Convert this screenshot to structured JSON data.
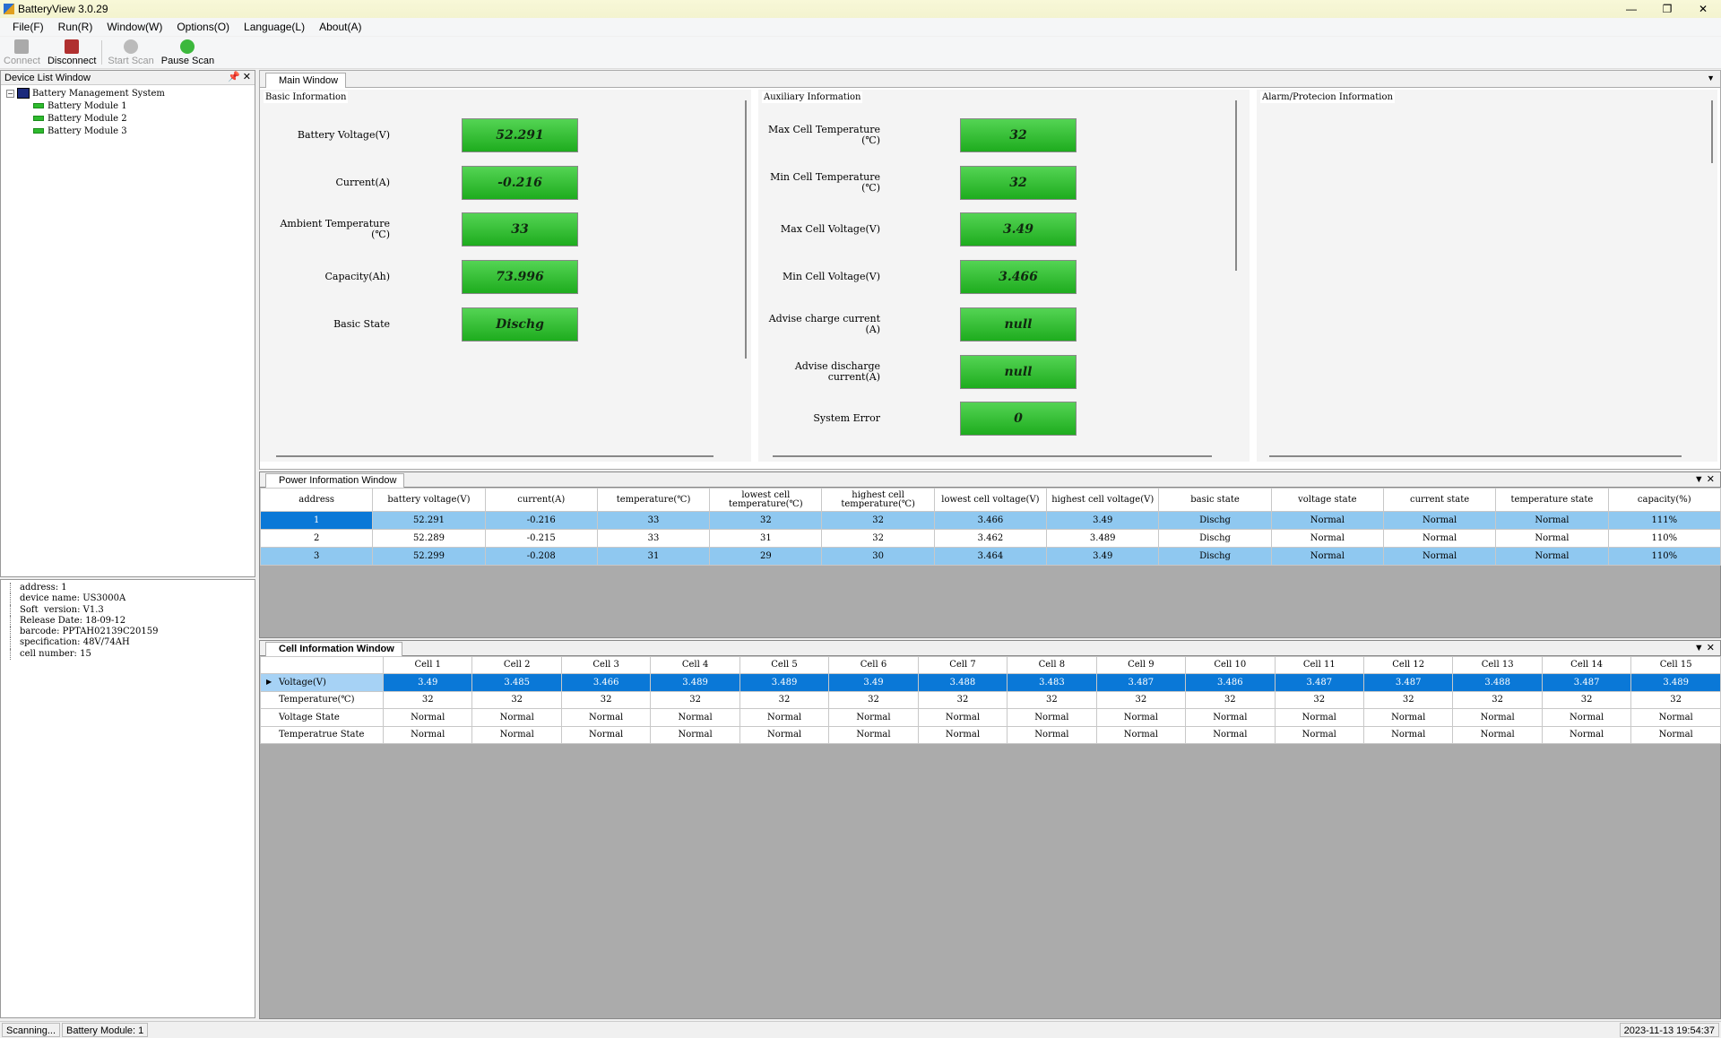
{
  "window": {
    "title": "BatteryView 3.0.29"
  },
  "menu": [
    "File(F)",
    "Run(R)",
    "Window(W)",
    "Options(O)",
    "Language(L)",
    "About(A)"
  ],
  "toolbar": {
    "connect": "Connect",
    "disconnect": "Disconnect",
    "start_scan": "Start Scan",
    "pause_scan": "Pause Scan"
  },
  "device_list": {
    "title": "Device List Window",
    "root": "Battery Management System",
    "modules": [
      "Battery Module 1",
      "Battery Module 2",
      "Battery Module 3"
    ]
  },
  "device_info": [
    "address: 1",
    "device name: US3000A",
    "Soft  version: V1.3",
    "Release Date: 18-09-12",
    "barcode: PPTAH02139C20159",
    "specification: 48V/74AH",
    "cell number: 15"
  ],
  "main_window": {
    "tab": "Main Window",
    "basic": {
      "title": "Basic Information",
      "items": [
        {
          "label": "Battery Voltage(V)",
          "value": "52.291"
        },
        {
          "label": "Current(A)",
          "value": "-0.216"
        },
        {
          "label": "Ambient Temperature\n(℃)",
          "value": "33"
        },
        {
          "label": "Capacity(Ah)",
          "value": "73.996"
        },
        {
          "label": "Basic State",
          "value": "Dischg"
        }
      ]
    },
    "aux": {
      "title": "Auxiliary Information",
      "items": [
        {
          "label": "Max Cell Temperature\n(℃)",
          "value": "32"
        },
        {
          "label": "Min Cell Temperature\n(℃)",
          "value": "32"
        },
        {
          "label": "Max Cell Voltage(V)",
          "value": "3.49"
        },
        {
          "label": "Min Cell Voltage(V)",
          "value": "3.466"
        },
        {
          "label": "Advise charge current\n(A)",
          "value": "null"
        },
        {
          "label": "Advise discharge\ncurrent(A)",
          "value": "null"
        },
        {
          "label": "System Error",
          "value": "0"
        }
      ]
    },
    "alarm": {
      "title": "Alarm/Protecion Information"
    }
  },
  "power_window": {
    "tab": "Power Information Window",
    "headers": [
      "address",
      "battery voltage(V)",
      "current(A)",
      "temperature(℃)",
      "lowest cell temperature(℃)",
      "highest cell temperature(℃)",
      "lowest cell voltage(V)",
      "highest cell voltage(V)",
      "basic state",
      "voltage state",
      "current state",
      "temperature state",
      "capacity(%)"
    ],
    "rows": [
      [
        "1",
        "52.291",
        "-0.216",
        "33",
        "32",
        "32",
        "3.466",
        "3.49",
        "Dischg",
        "Normal",
        "Normal",
        "Normal",
        "111%"
      ],
      [
        "2",
        "52.289",
        "-0.215",
        "33",
        "31",
        "32",
        "3.462",
        "3.489",
        "Dischg",
        "Normal",
        "Normal",
        "Normal",
        "110%"
      ],
      [
        "3",
        "52.299",
        "-0.208",
        "31",
        "29",
        "30",
        "3.464",
        "3.49",
        "Dischg",
        "Normal",
        "Normal",
        "Normal",
        "110%"
      ]
    ]
  },
  "cell_window": {
    "tab": "Cell Information Window",
    "headers": [
      "",
      "Cell 1",
      "Cell 2",
      "Cell 3",
      "Cell 4",
      "Cell 5",
      "Cell 6",
      "Cell 7",
      "Cell 8",
      "Cell 9",
      "Cell 10",
      "Cell 11",
      "Cell 12",
      "Cell 13",
      "Cell 14",
      "Cell 15"
    ],
    "rows": [
      [
        "Voltage(V)",
        "3.49",
        "3.485",
        "3.466",
        "3.489",
        "3.489",
        "3.49",
        "3.488",
        "3.483",
        "3.487",
        "3.486",
        "3.487",
        "3.487",
        "3.488",
        "3.487",
        "3.489"
      ],
      [
        "Temperature(℃)",
        "32",
        "32",
        "32",
        "32",
        "32",
        "32",
        "32",
        "32",
        "32",
        "32",
        "32",
        "32",
        "32",
        "32",
        "32"
      ],
      [
        "Voltage State",
        "Normal",
        "Normal",
        "Normal",
        "Normal",
        "Normal",
        "Normal",
        "Normal",
        "Normal",
        "Normal",
        "Normal",
        "Normal",
        "Normal",
        "Normal",
        "Normal",
        "Normal"
      ],
      [
        "Temperatrue State",
        "Normal",
        "Normal",
        "Normal",
        "Normal",
        "Normal",
        "Normal",
        "Normal",
        "Normal",
        "Normal",
        "Normal",
        "Normal",
        "Normal",
        "Normal",
        "Normal",
        "Normal"
      ]
    ]
  },
  "status": {
    "scan": "Scanning...",
    "module": "Battery Module: 1",
    "time": "2023-11-13 19:54:37"
  }
}
